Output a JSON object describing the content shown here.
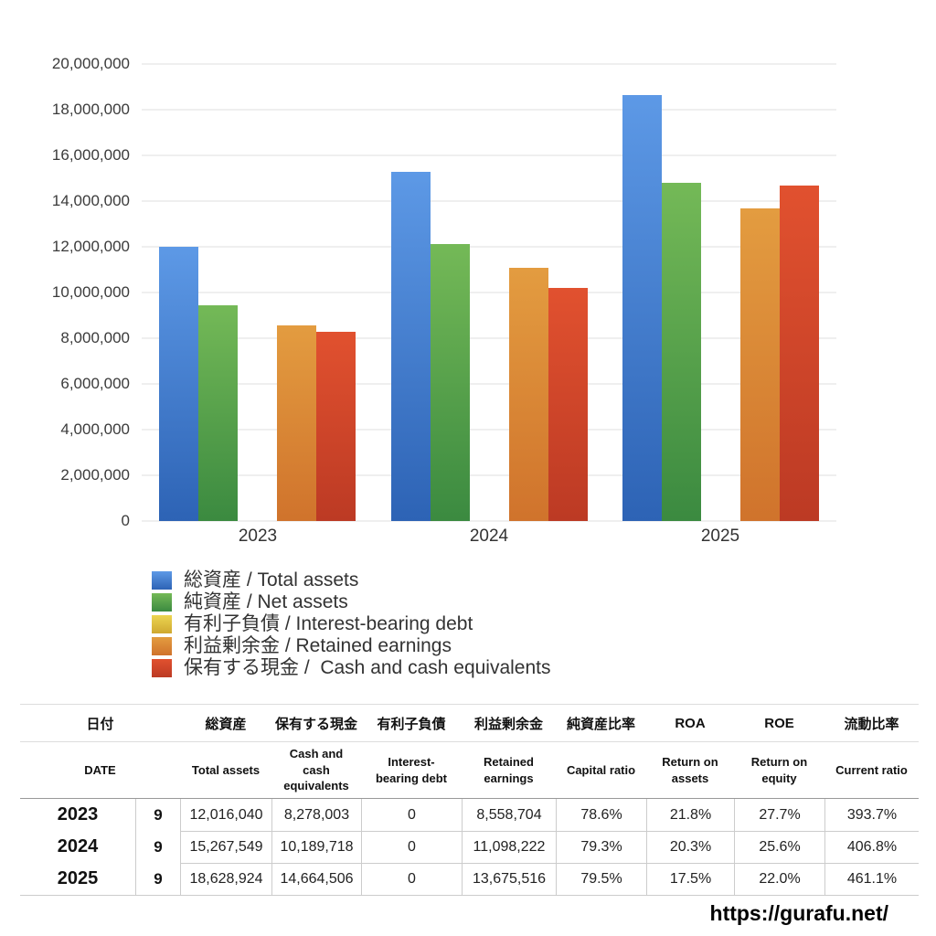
{
  "chart_data": {
    "type": "bar",
    "categories": [
      "2023",
      "2024",
      "2025"
    ],
    "series": [
      {
        "key": "total-assets",
        "label": "総資産 / Total assets",
        "color_top": "#5d99e6",
        "color_bottom": "#2d63b5",
        "values": [
          12016040,
          15267549,
          18628924
        ]
      },
      {
        "key": "net-assets",
        "label": "純資産 / Net assets",
        "color_top": "#74b957",
        "color_bottom": "#3b8a40",
        "values": [
          9444607,
          12107166,
          14809995
        ]
      },
      {
        "key": "interest-bearing-debt",
        "label": "有利子負債 / Interest-bearing debt",
        "color_top": "#ecd551",
        "color_bottom": "#cfa830",
        "values": [
          0,
          0,
          0
        ]
      },
      {
        "key": "retained-earnings",
        "label": "利益剰余金 / Retained earnings",
        "color_top": "#e39c40",
        "color_bottom": "#d0732c",
        "values": [
          8558704,
          11098222,
          13675516
        ]
      },
      {
        "key": "cash",
        "label": "保有する現金 /  Cash and cash equivalents",
        "color_top": "#e1512f",
        "color_bottom": "#bc3a24",
        "values": [
          8278003,
          10189718,
          14664506
        ]
      }
    ],
    "ylim": [
      0,
      20000000
    ],
    "ytick_step": 2000000,
    "ytick_labels": [
      "20,000,000",
      "18,000,000",
      "16,000,000",
      "14,000,000",
      "12,000,000",
      "10,000,000",
      "8,000,000",
      "6,000,000",
      "4,000,000",
      "2,000,000",
      "0"
    ],
    "grid": true,
    "legend_position": "bottom-left",
    "title": "",
    "xlabel": "",
    "ylabel": ""
  },
  "table": {
    "headers": [
      {
        "ja": "日付",
        "en": "DATE"
      },
      {
        "ja": "総資産",
        "en": "Total assets"
      },
      {
        "ja": "保有する現金",
        "en": "Cash and cash equivalents"
      },
      {
        "ja": "有利子負債",
        "en": "Interest-bearing debt"
      },
      {
        "ja": "利益剰余金",
        "en": "Retained earnings"
      },
      {
        "ja": "純資産比率",
        "en": "Capital ratio"
      },
      {
        "ja": "ROA",
        "en": "Return on assets"
      },
      {
        "ja": "ROE",
        "en": "Return on equity"
      },
      {
        "ja": "流動比率",
        "en": "Current ratio"
      }
    ],
    "rows": [
      [
        "2023",
        "9",
        "12,016,040",
        "8,278,003",
        "0",
        "8,558,704",
        "78.6%",
        "21.8%",
        "27.7%",
        "393.7%"
      ],
      [
        "2024",
        "9",
        "15,267,549",
        "10,189,718",
        "0",
        "11,098,222",
        "79.3%",
        "20.3%",
        "25.6%",
        "406.8%"
      ],
      [
        "2025",
        "9",
        "18,628,924",
        "14,664,506",
        "0",
        "13,675,516",
        "79.5%",
        "17.5%",
        "22.0%",
        "461.1%"
      ]
    ]
  },
  "footer": {
    "url_text": "https://gurafu.net/"
  }
}
